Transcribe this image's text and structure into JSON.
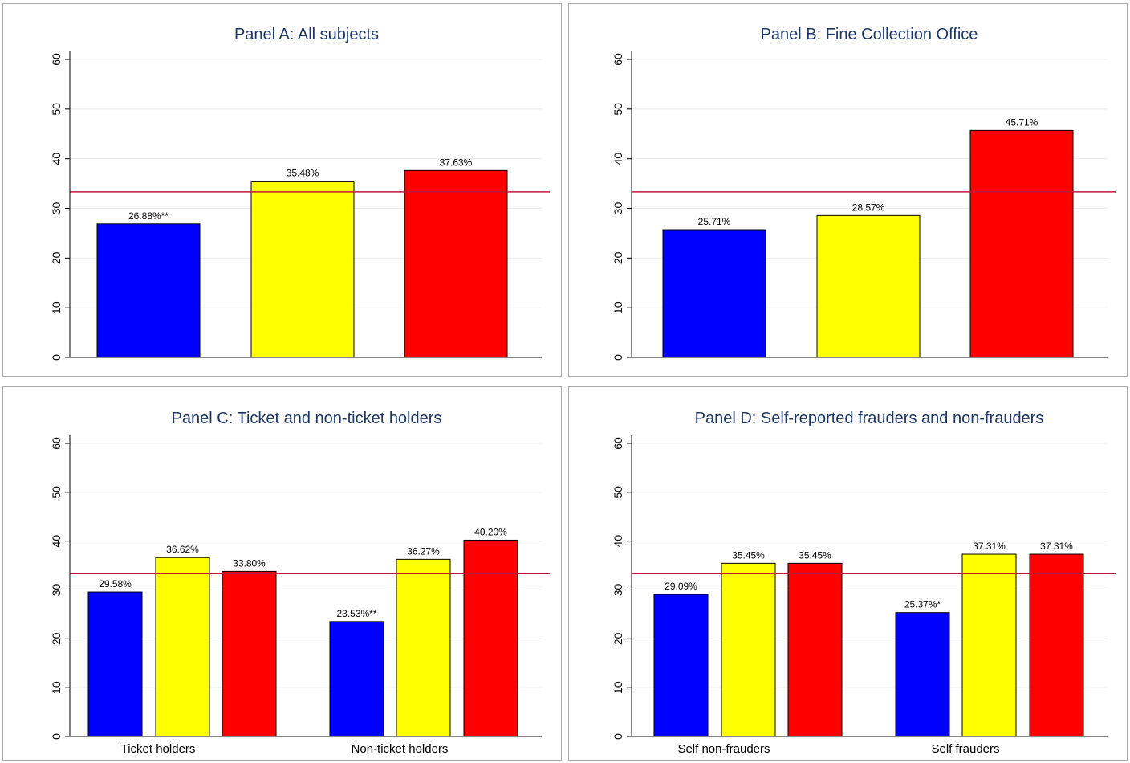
{
  "colors": {
    "blue": "#0000ff",
    "yellow": "#ffff00",
    "red": "#ff0000",
    "reference_line": "#c0163c",
    "grid": "#ececec",
    "title": "#1c3668"
  },
  "chart_data": [
    {
      "type": "bar",
      "title": "Panel A: All subjects",
      "xlabel": "",
      "ylabel": "",
      "ylim": [
        0,
        60
      ],
      "yticks": [
        "0",
        "10",
        "20",
        "30",
        "40",
        "50",
        "60"
      ],
      "grid": true,
      "reference_line": 33.33,
      "categories": [
        ""
      ],
      "series": [
        {
          "color": "#0000ff",
          "values": [
            26.88
          ],
          "labels": [
            "26.88%**"
          ]
        },
        {
          "color": "#ffff00",
          "values": [
            35.48
          ],
          "labels": [
            "35.48%"
          ]
        },
        {
          "color": "#ff0000",
          "values": [
            37.63
          ],
          "labels": [
            "37.63%"
          ]
        }
      ]
    },
    {
      "type": "bar",
      "title": "Panel B: Fine Collection Office",
      "xlabel": "",
      "ylabel": "",
      "ylim": [
        0,
        60
      ],
      "yticks": [
        "0",
        "10",
        "20",
        "30",
        "40",
        "50",
        "60"
      ],
      "grid": true,
      "reference_line": 33.33,
      "categories": [
        ""
      ],
      "series": [
        {
          "color": "#0000ff",
          "values": [
            25.71
          ],
          "labels": [
            "25.71%"
          ]
        },
        {
          "color": "#ffff00",
          "values": [
            28.57
          ],
          "labels": [
            "28.57%"
          ]
        },
        {
          "color": "#ff0000",
          "values": [
            45.71
          ],
          "labels": [
            "45.71%"
          ]
        }
      ]
    },
    {
      "type": "bar",
      "title": "Panel C: Ticket and non-ticket holders",
      "xlabel": "",
      "ylabel": "",
      "ylim": [
        0,
        60
      ],
      "yticks": [
        "0",
        "10",
        "20",
        "30",
        "40",
        "50",
        "60"
      ],
      "grid": true,
      "reference_line": 33.33,
      "categories": [
        "Ticket holders",
        "Non-ticket holders"
      ],
      "series": [
        {
          "color": "#0000ff",
          "values": [
            29.58,
            23.53
          ],
          "labels": [
            "29.58%",
            "23.53%**"
          ]
        },
        {
          "color": "#ffff00",
          "values": [
            36.62,
            36.27
          ],
          "labels": [
            "36.62%",
            "36.27%"
          ]
        },
        {
          "color": "#ff0000",
          "values": [
            33.8,
            40.2
          ],
          "labels": [
            "33.80%",
            "40.20%"
          ]
        }
      ]
    },
    {
      "type": "bar",
      "title": "Panel D: Self-reported frauders and non-frauders",
      "xlabel": "",
      "ylabel": "",
      "ylim": [
        0,
        60
      ],
      "yticks": [
        "0",
        "10",
        "20",
        "30",
        "40",
        "50",
        "60"
      ],
      "grid": true,
      "reference_line": 33.33,
      "categories": [
        "Self non-frauders",
        "Self frauders"
      ],
      "series": [
        {
          "color": "#0000ff",
          "values": [
            29.09,
            25.37
          ],
          "labels": [
            "29.09%",
            "25.37%*"
          ]
        },
        {
          "color": "#ffff00",
          "values": [
            35.45,
            37.31
          ],
          "labels": [
            "35.45%",
            "37.31%"
          ]
        },
        {
          "color": "#ff0000",
          "values": [
            35.45,
            37.31
          ],
          "labels": [
            "35.45%",
            "37.31%"
          ]
        }
      ]
    }
  ]
}
